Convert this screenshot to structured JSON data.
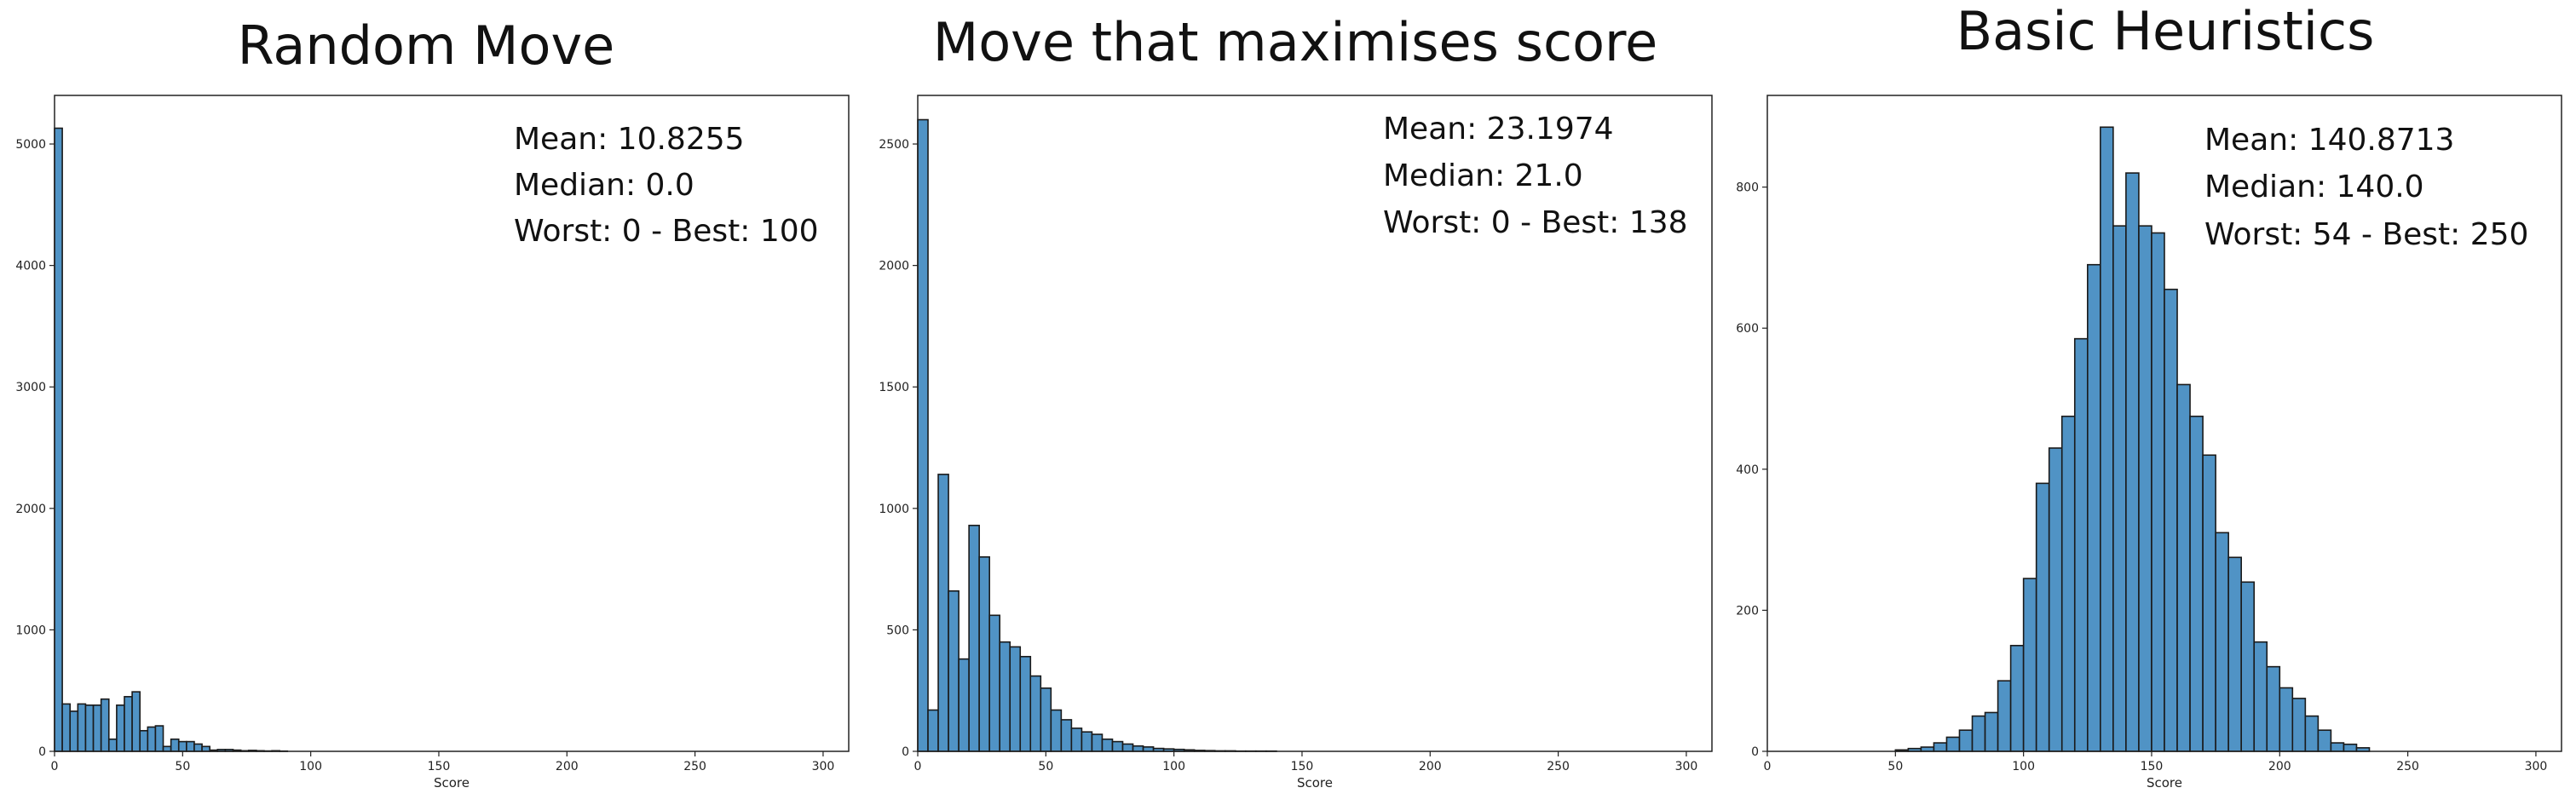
{
  "chart_data": [
    {
      "type": "bar",
      "title": "Random Move",
      "xlabel": "Score",
      "ylabel": "",
      "xlim": [
        0,
        310
      ],
      "ylim": [
        0,
        5400
      ],
      "x_ticks": [
        0,
        50,
        100,
        150,
        200,
        250,
        300
      ],
      "y_ticks": [
        0,
        1000,
        2000,
        3000,
        4000,
        5000
      ],
      "bin_width": 3.03,
      "x": [
        0,
        3.03,
        6.06,
        9.09,
        12.12,
        15.15,
        18.18,
        21.21,
        24.24,
        27.27,
        30.3,
        33.33,
        36.36,
        39.39,
        42.42,
        45.45,
        48.48,
        51.51,
        54.54,
        57.57,
        60.6,
        63.63,
        66.66,
        69.69,
        72.72,
        75.75,
        78.78,
        81.81,
        84.84,
        87.87
      ],
      "values": [
        5130,
        390,
        330,
        390,
        380,
        380,
        430,
        100,
        380,
        450,
        490,
        170,
        200,
        210,
        40,
        100,
        80,
        80,
        60,
        40,
        10,
        15,
        15,
        10,
        5,
        8,
        5,
        3,
        5,
        2
      ],
      "annotations": [
        "Mean: 10.8255",
        "Median: 0.0",
        "Worst: 0 - Best: 100"
      ],
      "grid": false
    },
    {
      "type": "bar",
      "title": "Move that maximises score",
      "xlabel": "Score",
      "ylabel": "",
      "xlim": [
        0,
        310
      ],
      "ylim": [
        0,
        2700
      ],
      "x_ticks": [
        0,
        50,
        100,
        150,
        200,
        250,
        300
      ],
      "y_ticks": [
        0,
        500,
        1000,
        1500,
        2000,
        2500
      ],
      "bin_width": 4.0,
      "x": [
        0,
        4,
        8,
        12,
        16,
        20,
        24,
        28,
        32,
        36,
        40,
        44,
        48,
        52,
        56,
        60,
        64,
        68,
        72,
        76,
        80,
        84,
        88,
        92,
        96,
        100,
        104,
        108,
        112,
        116,
        120,
        124,
        128,
        132,
        136
      ],
      "values": [
        2600,
        170,
        1140,
        660,
        380,
        930,
        800,
        560,
        450,
        430,
        390,
        310,
        260,
        170,
        130,
        95,
        80,
        70,
        50,
        40,
        30,
        22,
        18,
        12,
        10,
        8,
        6,
        4,
        3,
        2,
        2,
        1,
        1,
        1,
        1
      ],
      "annotations": [
        "Mean: 23.1974",
        "Median: 21.0",
        "Worst: 0 - Best: 138"
      ],
      "grid": false
    },
    {
      "type": "bar",
      "title": "Basic Heuristics",
      "xlabel": "Score",
      "ylabel": "",
      "xlim": [
        0,
        310
      ],
      "ylim": [
        0,
        930
      ],
      "x_ticks": [
        0,
        50,
        100,
        150,
        200,
        250,
        300
      ],
      "y_ticks": [
        0,
        200,
        400,
        600,
        800
      ],
      "bin_width": 5.0,
      "x": [
        50,
        55,
        60,
        65,
        70,
        75,
        80,
        85,
        90,
        95,
        100,
        105,
        110,
        115,
        120,
        125,
        130,
        135,
        140,
        145,
        150,
        155,
        160,
        165,
        170,
        175,
        180,
        185,
        190,
        195,
        200,
        205,
        210,
        215,
        220,
        225,
        230
      ],
      "values": [
        2,
        4,
        6,
        12,
        20,
        30,
        50,
        55,
        100,
        150,
        245,
        380,
        430,
        475,
        585,
        690,
        885,
        745,
        820,
        745,
        735,
        655,
        520,
        475,
        420,
        310,
        275,
        240,
        155,
        120,
        90,
        75,
        50,
        30,
        12,
        10,
        5
      ],
      "annotations": [
        "Mean: 140.8713",
        "Median: 140.0",
        "Worst: 54 - Best: 250"
      ],
      "grid": false
    }
  ]
}
